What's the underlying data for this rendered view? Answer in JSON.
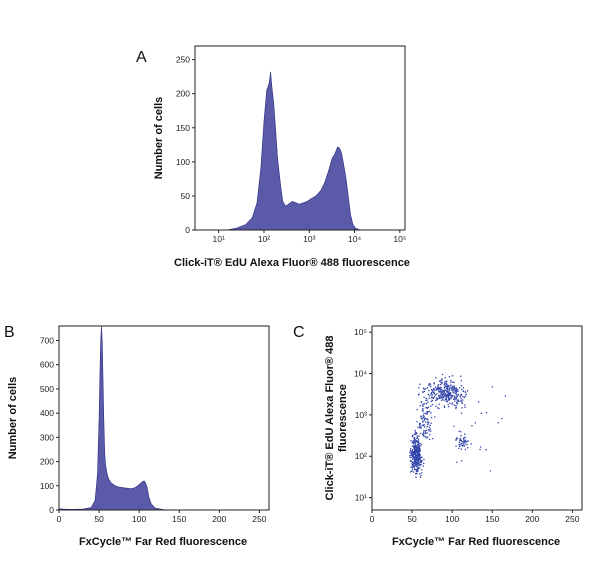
{
  "chart_data": [
    {
      "type": "area",
      "panel": "A",
      "xlabel": "Click-iT® EdU Alexa Fluor® 488  fluorescence",
      "ylabel": "Number of cells",
      "xscale": "log",
      "xlim": [
        3,
        130000
      ],
      "ylim": [
        0,
        270
      ],
      "xticks": [
        10,
        100,
        1000,
        10000,
        100000
      ],
      "xtick_labels": [
        "10¹",
        "10²",
        "10³",
        "10⁴",
        "10⁵"
      ],
      "yticks": [
        0,
        50,
        100,
        150,
        200,
        250
      ],
      "ytick_labels": [
        "0",
        "50",
        "100",
        "150",
        "200",
        "250"
      ],
      "x": [
        15,
        25,
        40,
        55,
        70,
        85,
        100,
        115,
        130,
        140,
        150,
        165,
        180,
        200,
        230,
        260,
        300,
        350,
        420,
        500,
        600,
        750,
        900,
        1100,
        1400,
        1800,
        2200,
        2700,
        3200,
        3700,
        4200,
        4700,
        5200,
        5800,
        6500,
        7300,
        8200,
        9200,
        10500,
        12000,
        14000
      ],
      "values": [
        0,
        3,
        8,
        18,
        40,
        90,
        160,
        205,
        215,
        232,
        210,
        185,
        150,
        105,
        68,
        42,
        35,
        38,
        42,
        40,
        38,
        40,
        42,
        46,
        50,
        58,
        70,
        88,
        105,
        112,
        122,
        120,
        112,
        95,
        75,
        48,
        22,
        8,
        3,
        1,
        0
      ],
      "grid": false
    },
    {
      "type": "area",
      "panel": "B",
      "xlabel": "FxCycle™ Far Red fluorescence",
      "ylabel": "Number of cells",
      "xlim": [
        0,
        262
      ],
      "ylim": [
        0,
        760
      ],
      "xticks": [
        0,
        50,
        100,
        150,
        200,
        250
      ],
      "xtick_labels": [
        "0",
        "50",
        "100",
        "150",
        "200",
        "250"
      ],
      "yticks": [
        0,
        100,
        200,
        300,
        400,
        500,
        600,
        700
      ],
      "ytick_labels": [
        "0",
        "100",
        "200",
        "300",
        "400",
        "500",
        "600",
        "700"
      ],
      "x": [
        0,
        10,
        20,
        30,
        40,
        45,
        48,
        50,
        51,
        52,
        53,
        54,
        55,
        56,
        57,
        58,
        60,
        62,
        65,
        70,
        75,
        80,
        85,
        90,
        95,
        100,
        103,
        106,
        108,
        110,
        112,
        115,
        120,
        130,
        140
      ],
      "values": [
        5,
        3,
        3,
        4,
        10,
        40,
        150,
        380,
        560,
        700,
        760,
        690,
        520,
        360,
        240,
        190,
        150,
        128,
        112,
        100,
        95,
        92,
        90,
        88,
        92,
        105,
        115,
        120,
        112,
        92,
        55,
        25,
        8,
        2,
        0
      ],
      "grid": false
    },
    {
      "type": "scatter",
      "panel": "C",
      "xlabel": "FxCycle™ Far Red fluorescence",
      "ylabel": [
        "Click-iT® EdU Alexa Fluor® 488",
        "fluorescence"
      ],
      "xlim": [
        0,
        262
      ],
      "ylim_log": [
        0.7,
        3.0
      ],
      "yscale": "log",
      "xticks": [
        0,
        50,
        100,
        150,
        200,
        250
      ],
      "xtick_labels": [
        "0",
        "50",
        "100",
        "150",
        "200",
        "250"
      ],
      "yticks": [
        10,
        100,
        1000,
        10000,
        100000
      ],
      "ytick_labels": [
        "10¹",
        "10²",
        "10³",
        "10⁴",
        "10⁵"
      ],
      "clusters": [
        {
          "name": "",
          "x_center": 54,
          "x_spread": 5,
          "log_y_center": 2.05,
          "log_y_spread": 0.3,
          "count": 340
        },
        {
          "name": "",
          "x_center": 92,
          "x_spread": 18,
          "log_y_center": 3.55,
          "log_y_spread": 0.22,
          "count": 320
        },
        {
          "name": "",
          "x_center": 65,
          "x_spread": 6,
          "log_y_center": 2.9,
          "log_y_spread": 0.45,
          "count": 90
        },
        {
          "name": "",
          "x_center": 112,
          "x_spread": 5,
          "log_y_center": 2.35,
          "log_y_spread": 0.12,
          "count": 45
        },
        {
          "name": "",
          "x_center": 130,
          "x_spread": 40,
          "log_y_center": 2.6,
          "log_y_spread": 0.9,
          "count": 20
        }
      ],
      "grid": false
    }
  ],
  "panel_labels": [
    "A",
    "B",
    "C"
  ]
}
